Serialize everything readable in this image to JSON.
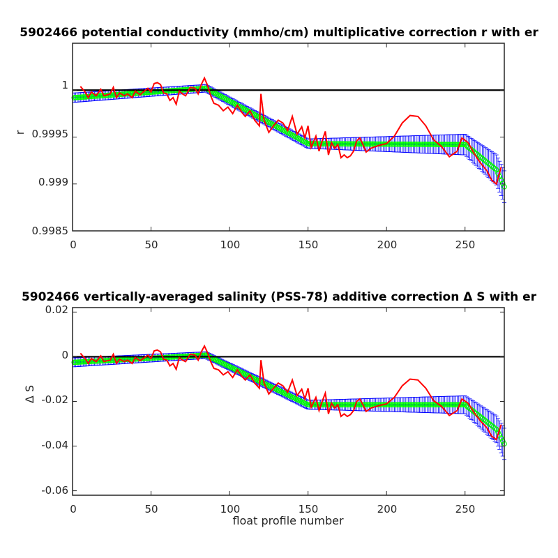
{
  "chart_data": [
    {
      "type": "line",
      "title": "5902466 potential conductivity (mmho/cm) multiplicative correction r with er",
      "xlabel": "",
      "ylabel": "r",
      "xlim": [
        0,
        275
      ],
      "ylim": [
        0.9985,
        1.0005
      ],
      "xticks": [
        0,
        50,
        100,
        150,
        200,
        250
      ],
      "yticks": [
        0.9985,
        0.999,
        0.9995,
        1
      ],
      "xtick_labels": [
        "0",
        "50",
        "100",
        "150",
        "200",
        "250"
      ],
      "ytick_labels": [
        "0.9985",
        "0.999",
        "0.9995",
        "1"
      ],
      "grid": false,
      "colors": {
        "reference": "#000000",
        "errorbar": "#0000ff",
        "fit": "#00ff00",
        "profile": "#ff0000"
      },
      "series": [
        {
          "role": "reference",
          "x": [
            0,
            275
          ],
          "y": [
            1.0,
            1.0
          ]
        },
        {
          "role": "fit",
          "x": [
            1,
            85,
            150,
            250,
            270,
            275
          ],
          "y": [
            0.99992,
            1.00002,
            0.99943,
            0.99942,
            0.99915,
            0.99897
          ]
        },
        {
          "role": "error",
          "x": [
            1,
            85,
            150,
            250,
            270,
            275
          ],
          "err": [
            5e-05,
            4e-05,
            5e-05,
            0.00011,
            0.00016,
            0.00017
          ]
        },
        {
          "role": "profile",
          "x": [
            5,
            8,
            10,
            12,
            15,
            18,
            20,
            22,
            24,
            26,
            28,
            30,
            33,
            35,
            38,
            40,
            43,
            45,
            48,
            50,
            52,
            54,
            56,
            58,
            60,
            62,
            64,
            66,
            68,
            70,
            72,
            75,
            78,
            80,
            82,
            84,
            86,
            88,
            90,
            93,
            96,
            99,
            102,
            105,
            108,
            110,
            113,
            116,
            119,
            120,
            122,
            125,
            128,
            131,
            134,
            137,
            140,
            143,
            146,
            148,
            150,
            152,
            155,
            157,
            159,
            161,
            163,
            165,
            167,
            169,
            171,
            173,
            175,
            177,
            179,
            181,
            183,
            185,
            187,
            190,
            195,
            200,
            205,
            210,
            215,
            220,
            225,
            230,
            235,
            240,
            245,
            248,
            252,
            256,
            260,
            264,
            267,
            270,
            273
          ],
          "y": [
            1.00004,
            0.99998,
            0.99992,
            0.99998,
            0.99994,
            1.00001,
            0.99994,
            0.99995,
            0.99996,
            1.00003,
            0.99992,
            0.99997,
            0.99994,
            0.99996,
            0.99992,
            0.99999,
            0.99995,
            0.99998,
            1.00002,
            0.99998,
            1.00007,
            1.00008,
            1.00006,
            0.99997,
            0.99996,
            0.99989,
            0.99992,
            0.99985,
            0.99999,
            0.99996,
            0.99994,
            1.00003,
            1.00002,
            0.99996,
            1.00006,
            1.00013,
            1.00005,
            0.99994,
            0.99986,
            0.99984,
            0.99978,
            0.99982,
            0.99975,
            0.99984,
            0.99976,
            0.99972,
            0.99978,
            0.99968,
            0.99962,
            0.99996,
            0.99968,
            0.99955,
            0.99962,
            0.99968,
            0.99965,
            0.99957,
            0.99972,
            0.99953,
            0.99961,
            0.99949,
            0.99962,
            0.99939,
            0.99951,
            0.99935,
            0.99946,
            0.99956,
            0.99931,
            0.99944,
            0.99938,
            0.99942,
            0.99928,
            0.99931,
            0.99928,
            0.9993,
            0.99935,
            0.99946,
            0.99949,
            0.99942,
            0.99934,
            0.99938,
            0.99941,
            0.99943,
            0.99951,
            0.99965,
            0.99973,
            0.99972,
            0.99962,
            0.99947,
            0.9994,
            0.99929,
            0.99935,
            0.99949,
            0.99944,
            0.99932,
            0.99922,
            0.99914,
            0.99904,
            0.999,
            0.99918
          ]
        }
      ]
    },
    {
      "type": "line",
      "title": "5902466 vertically-averaged salinity (PSS-78) additive correction Δ S with er",
      "xlabel": "float profile number",
      "ylabel": "Δ S",
      "xlim": [
        0,
        275
      ],
      "ylim": [
        -0.062,
        0.022
      ],
      "xticks": [
        0,
        50,
        100,
        150,
        200,
        250
      ],
      "yticks": [
        0.02,
        0,
        -0.02,
        -0.04,
        -0.06
      ],
      "xtick_labels": [
        "0",
        "50",
        "100",
        "150",
        "200",
        "250"
      ],
      "ytick_labels": [
        "0.02",
        "0",
        "-0.02",
        "-0.04",
        "-0.06"
      ],
      "grid": false,
      "colors": {
        "reference": "#000000",
        "errorbar": "#0000ff",
        "fit": "#00ff00",
        "profile": "#ff0000"
      },
      "series": [
        {
          "role": "reference",
          "x": [
            0,
            275
          ],
          "y": [
            0.0,
            0.0
          ]
        },
        {
          "role": "fit",
          "x": [
            1,
            85,
            150,
            250,
            270,
            275
          ],
          "y": [
            -0.0025,
            0.0007,
            -0.0215,
            -0.0215,
            -0.0325,
            -0.039
          ]
        },
        {
          "role": "error",
          "x": [
            1,
            85,
            150,
            250,
            270,
            275
          ],
          "err": [
            0.002,
            0.0015,
            0.002,
            0.004,
            0.006,
            0.007
          ]
        },
        {
          "role": "profile",
          "x": [
            5,
            8,
            10,
            12,
            15,
            18,
            20,
            22,
            24,
            26,
            28,
            30,
            33,
            35,
            38,
            40,
            43,
            45,
            48,
            50,
            52,
            54,
            56,
            58,
            60,
            62,
            64,
            66,
            68,
            70,
            72,
            75,
            78,
            80,
            82,
            84,
            86,
            88,
            90,
            93,
            96,
            99,
            102,
            105,
            108,
            110,
            113,
            116,
            119,
            120,
            122,
            125,
            128,
            131,
            134,
            137,
            140,
            143,
            146,
            148,
            150,
            152,
            155,
            157,
            159,
            161,
            163,
            165,
            167,
            169,
            171,
            173,
            175,
            177,
            179,
            181,
            183,
            185,
            187,
            190,
            195,
            200,
            205,
            210,
            215,
            220,
            225,
            230,
            235,
            240,
            245,
            248,
            252,
            256,
            260,
            264,
            267,
            270,
            273
          ],
          "y": [
            0.0015,
            -0.0008,
            -0.003,
            -0.0008,
            -0.0022,
            0.0004,
            -0.0022,
            -0.0018,
            -0.0015,
            0.0011,
            -0.003,
            -0.0011,
            -0.0022,
            -0.0015,
            -0.003,
            -0.0004,
            -0.0018,
            -0.0008,
            0.0007,
            -0.0008,
            0.0026,
            0.003,
            0.0022,
            -0.0011,
            -0.0015,
            -0.0041,
            -0.003,
            -0.0056,
            -0.0004,
            -0.0015,
            -0.0022,
            0.0011,
            0.0007,
            -0.0015,
            0.0022,
            0.0048,
            0.0018,
            -0.0022,
            -0.0052,
            -0.0059,
            -0.0081,
            -0.0067,
            -0.0093,
            -0.0059,
            -0.0089,
            -0.0104,
            -0.0081,
            -0.0118,
            -0.0141,
            -0.0015,
            -0.0118,
            -0.0167,
            -0.0141,
            -0.0118,
            -0.013,
            -0.0159,
            -0.0104,
            -0.0174,
            -0.0145,
            -0.0189,
            -0.0141,
            -0.0226,
            -0.0182,
            -0.0241,
            -0.02,
            -0.0163,
            -0.0256,
            -0.0208,
            -0.023,
            -0.0215,
            -0.0267,
            -0.0256,
            -0.0267,
            -0.0259,
            -0.0241,
            -0.02,
            -0.0189,
            -0.0215,
            -0.0245,
            -0.023,
            -0.0219,
            -0.0211,
            -0.0182,
            -0.013,
            -0.01,
            -0.0104,
            -0.0141,
            -0.0197,
            -0.0222,
            -0.0263,
            -0.0241,
            -0.0189,
            -0.0208,
            -0.0252,
            -0.0289,
            -0.0319,
            -0.0356,
            -0.0371,
            -0.0304
          ]
        }
      ]
    }
  ]
}
